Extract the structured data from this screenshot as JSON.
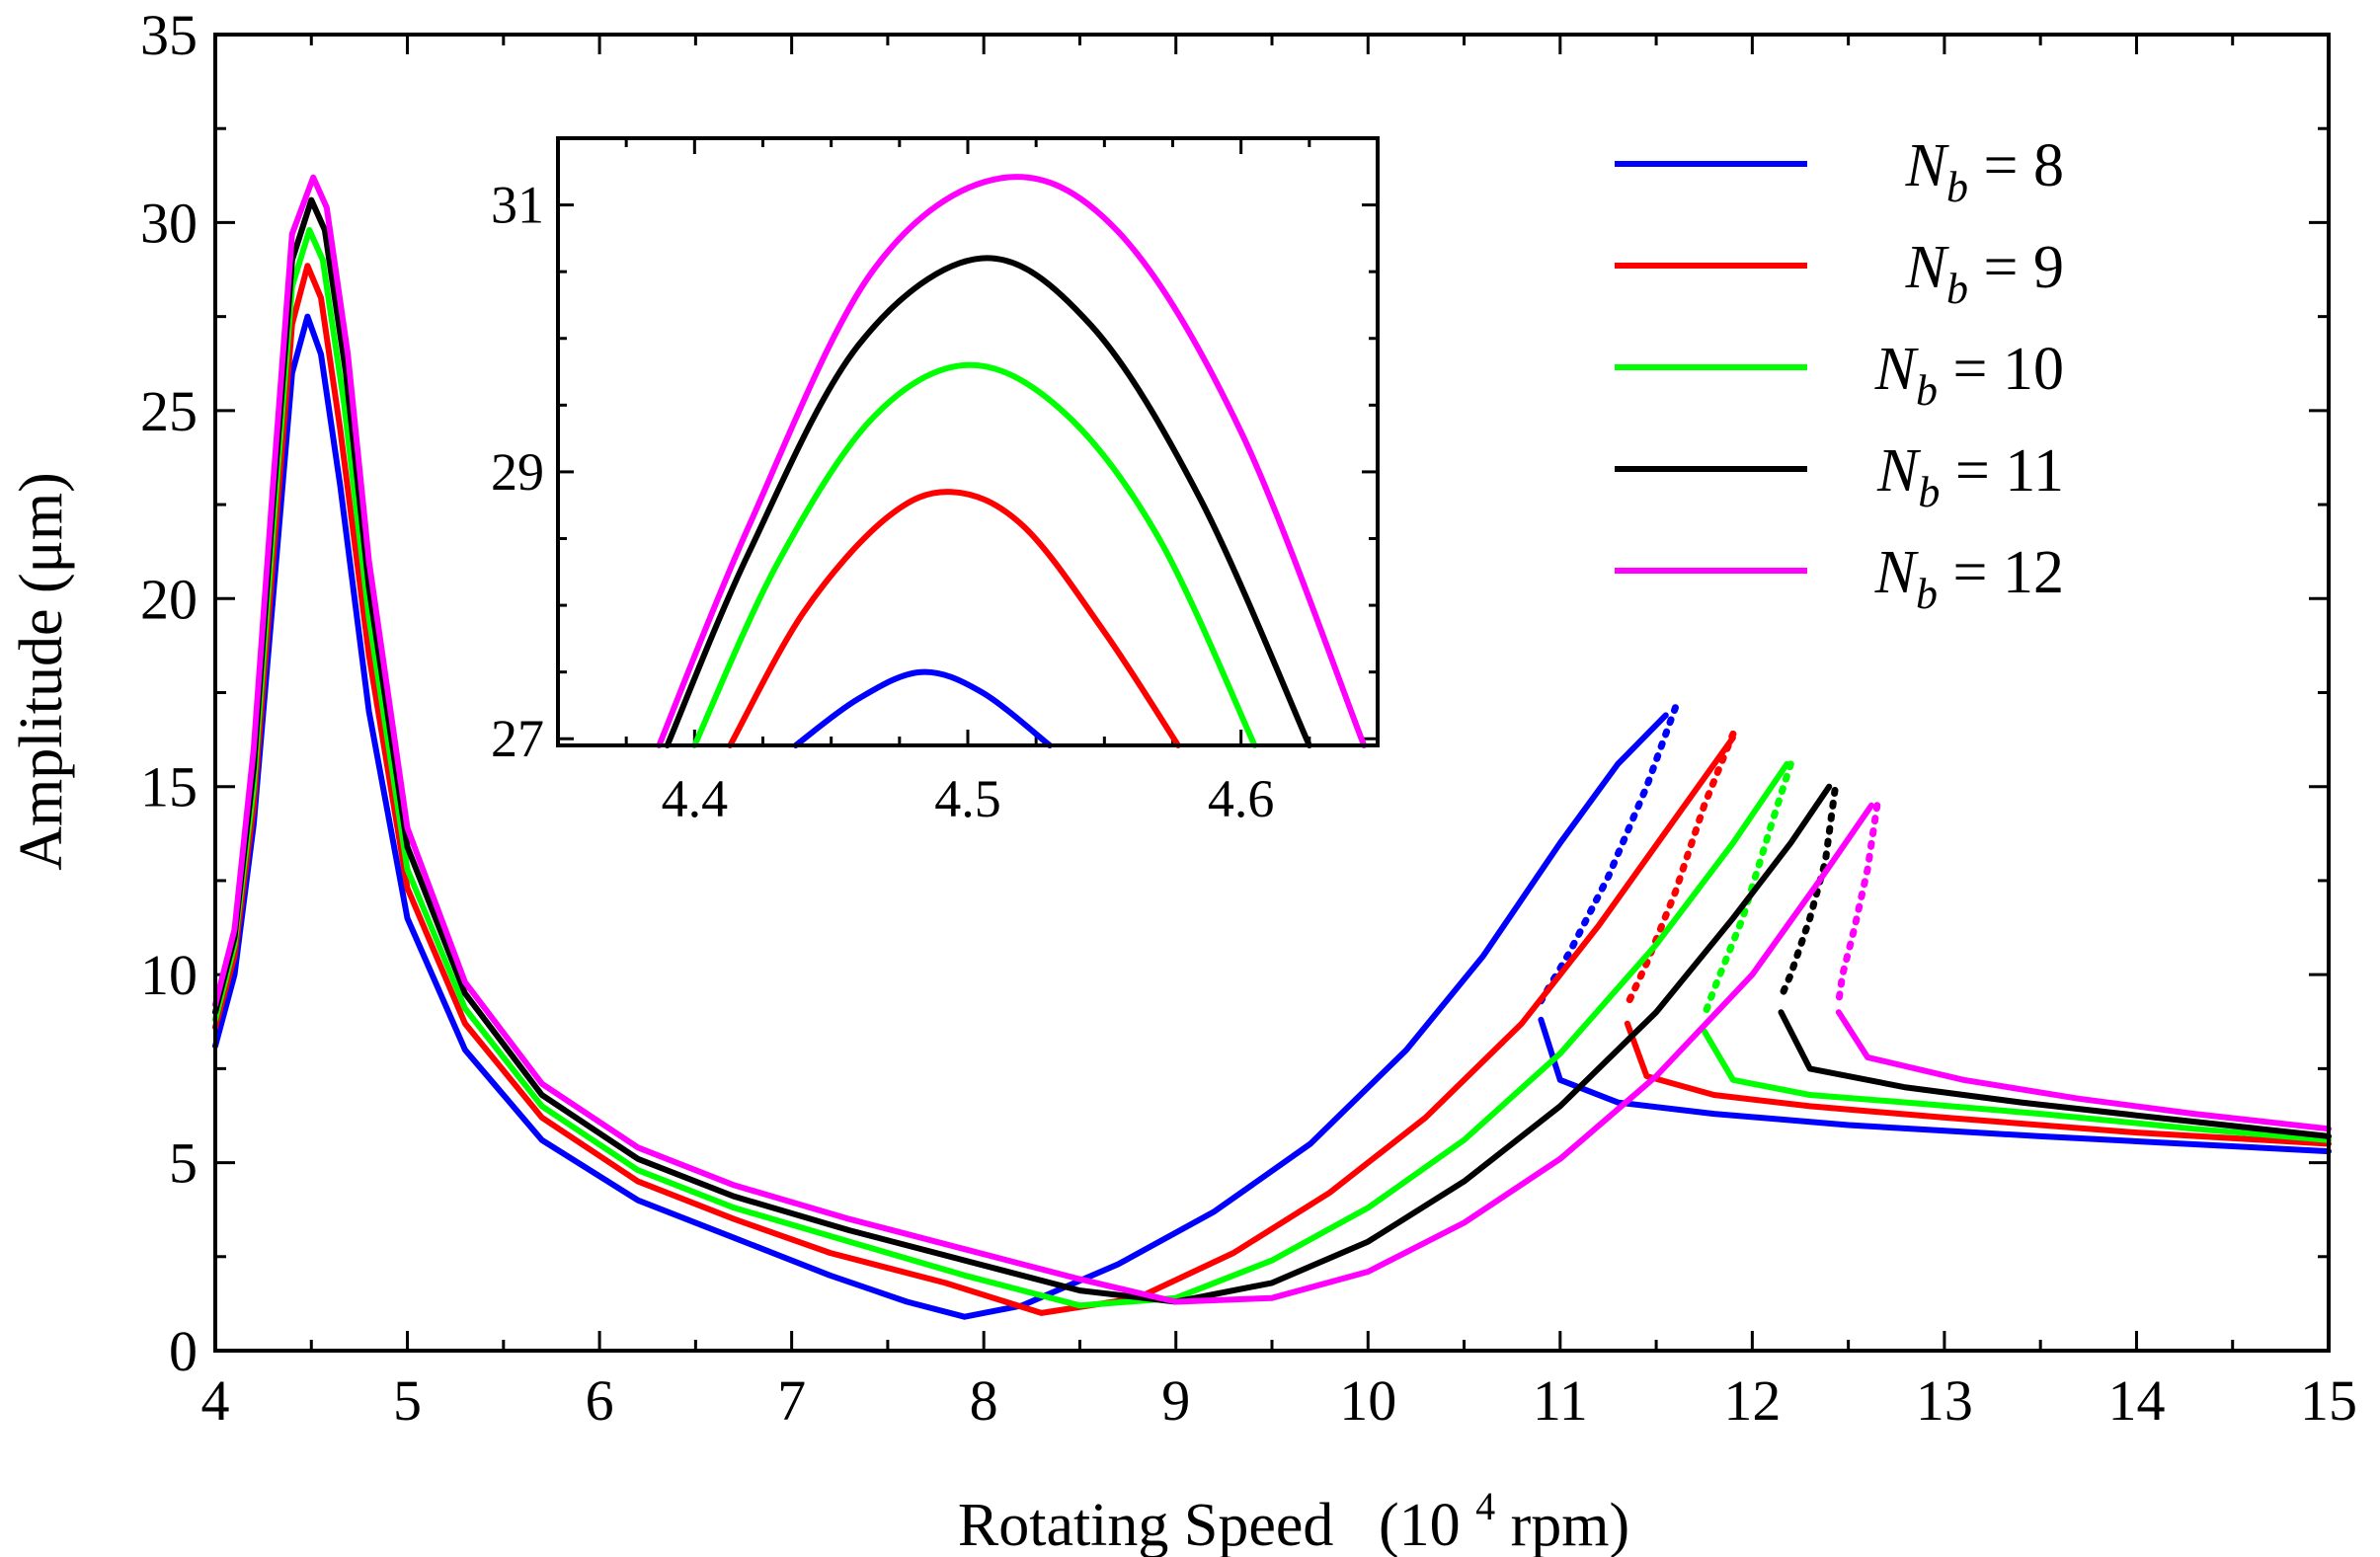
{
  "chart_data": {
    "type": "line",
    "title": "",
    "xlabel": {
      "text": "Rotating Speed",
      "unit_prefix": "(10",
      "unit_exp": "4",
      "unit_suffix": " rpm)"
    },
    "ylabel": {
      "text": "Amplitude (μm)"
    },
    "xlim": [
      4,
      15
    ],
    "ylim": [
      0,
      35
    ],
    "xticks": [
      "4",
      "5",
      "6",
      "7",
      "8",
      "9",
      "10",
      "11",
      "12",
      "13",
      "14",
      "15"
    ],
    "yticks": [
      "0",
      "5",
      "10",
      "15",
      "20",
      "25",
      "30",
      "35"
    ],
    "legend_position": "top-right",
    "legend": [
      {
        "symbol": "N",
        "subscript": "b",
        "rest": " = 8"
      },
      {
        "symbol": "N",
        "subscript": "b",
        "rest": " = 9"
      },
      {
        "symbol": "N",
        "subscript": "b",
        "rest": " = 10"
      },
      {
        "symbol": "N",
        "subscript": "b",
        "rest": " = 11"
      },
      {
        "symbol": "N",
        "subscript": "b",
        "rest": " = 12"
      }
    ],
    "series": [
      {
        "name": "Nb = 8",
        "color": "#0000ff",
        "solid_points": [
          [
            4,
            8.1
          ],
          [
            4.1,
            10
          ],
          [
            4.2,
            14
          ],
          [
            4.3,
            20
          ],
          [
            4.4,
            26
          ],
          [
            4.48,
            27.5
          ],
          [
            4.55,
            26.5
          ],
          [
            4.65,
            23
          ],
          [
            4.8,
            17
          ],
          [
            5,
            11.5
          ],
          [
            5.3,
            8
          ],
          [
            5.7,
            5.6
          ],
          [
            6.2,
            4
          ],
          [
            6.7,
            3
          ],
          [
            7.2,
            2
          ],
          [
            7.6,
            1.3
          ],
          [
            7.9,
            0.9
          ],
          [
            8.2,
            1.2
          ],
          [
            8.7,
            2.3
          ],
          [
            9.2,
            3.7
          ],
          [
            9.7,
            5.5
          ],
          [
            10.2,
            8
          ],
          [
            10.6,
            10.5
          ],
          [
            11,
            13.5
          ],
          [
            11.3,
            15.6
          ],
          [
            11.55,
            16.9
          ]
        ],
        "dotted_points": [
          [
            11.6,
            17.1
          ],
          [
            11.45,
            15
          ],
          [
            11.25,
            12.6
          ],
          [
            11.05,
            10.6
          ],
          [
            10.9,
            9.3
          ]
        ],
        "lower_points": [
          [
            10.9,
            8.8
          ],
          [
            11,
            7.2
          ],
          [
            11.3,
            6.6
          ],
          [
            11.8,
            6.3
          ],
          [
            12.5,
            6
          ],
          [
            13.5,
            5.7
          ],
          [
            15,
            5.3
          ]
        ]
      },
      {
        "name": "Nb = 9",
        "color": "#ff0000",
        "solid_points": [
          [
            4,
            8.6
          ],
          [
            4.1,
            10.5
          ],
          [
            4.2,
            14.5
          ],
          [
            4.3,
            21
          ],
          [
            4.4,
            27.3
          ],
          [
            4.48,
            28.85
          ],
          [
            4.55,
            28
          ],
          [
            4.65,
            24.5
          ],
          [
            4.8,
            18.5
          ],
          [
            5,
            12.3
          ],
          [
            5.3,
            8.7
          ],
          [
            5.7,
            6.2
          ],
          [
            6.2,
            4.5
          ],
          [
            6.7,
            3.5
          ],
          [
            7.2,
            2.6
          ],
          [
            7.8,
            1.8
          ],
          [
            8.3,
            1
          ],
          [
            8.8,
            1.4
          ],
          [
            9.3,
            2.6
          ],
          [
            9.8,
            4.2
          ],
          [
            10.3,
            6.2
          ],
          [
            10.8,
            8.7
          ],
          [
            11.2,
            11.3
          ],
          [
            11.55,
            13.8
          ],
          [
            11.9,
            16.3
          ]
        ],
        "dotted_points": [
          [
            11.9,
            16.4
          ],
          [
            11.75,
            14.5
          ],
          [
            11.6,
            12.2
          ],
          [
            11.45,
            10.3
          ],
          [
            11.35,
            9.2
          ]
        ],
        "lower_points": [
          [
            11.35,
            8.7
          ],
          [
            11.45,
            7.3
          ],
          [
            11.8,
            6.8
          ],
          [
            12.3,
            6.5
          ],
          [
            13,
            6.2
          ],
          [
            14,
            5.8
          ],
          [
            15,
            5.5
          ]
        ]
      },
      {
        "name": "Nb = 10",
        "color": "#00ff00",
        "solid_points": [
          [
            4,
            8.8
          ],
          [
            4.1,
            10.8
          ],
          [
            4.2,
            15
          ],
          [
            4.3,
            21.8
          ],
          [
            4.4,
            28.3
          ],
          [
            4.49,
            29.8
          ],
          [
            4.56,
            29
          ],
          [
            4.67,
            25.2
          ],
          [
            4.8,
            19.5
          ],
          [
            5,
            12.8
          ],
          [
            5.3,
            9.1
          ],
          [
            5.7,
            6.5
          ],
          [
            6.2,
            4.8
          ],
          [
            6.7,
            3.8
          ],
          [
            7.3,
            2.9
          ],
          [
            7.9,
            2
          ],
          [
            8.5,
            1.2
          ],
          [
            9,
            1.4
          ],
          [
            9.5,
            2.4
          ],
          [
            10,
            3.8
          ],
          [
            10.5,
            5.6
          ],
          [
            11,
            7.9
          ],
          [
            11.5,
            10.8
          ],
          [
            11.9,
            13.5
          ],
          [
            12.18,
            15.6
          ]
        ],
        "dotted_points": [
          [
            12.2,
            15.6
          ],
          [
            12.1,
            14
          ],
          [
            11.95,
            11.5
          ],
          [
            11.8,
            9.6
          ],
          [
            11.75,
            8.9
          ]
        ],
        "lower_points": [
          [
            11.75,
            8.5
          ],
          [
            11.9,
            7.2
          ],
          [
            12.3,
            6.8
          ],
          [
            12.8,
            6.6
          ],
          [
            13.5,
            6.3
          ],
          [
            14.3,
            5.9
          ],
          [
            15,
            5.6
          ]
        ]
      },
      {
        "name": "Nb = 11",
        "color": "#000000",
        "solid_points": [
          [
            4,
            9
          ],
          [
            4.1,
            11
          ],
          [
            4.2,
            15.5
          ],
          [
            4.3,
            22.5
          ],
          [
            4.4,
            29
          ],
          [
            4.5,
            30.6
          ],
          [
            4.57,
            29.8
          ],
          [
            4.68,
            26
          ],
          [
            4.8,
            20.3
          ],
          [
            5,
            13.4
          ],
          [
            5.3,
            9.5
          ],
          [
            5.7,
            6.8
          ],
          [
            6.2,
            5.1
          ],
          [
            6.7,
            4.1
          ],
          [
            7.3,
            3.2
          ],
          [
            7.9,
            2.4
          ],
          [
            8.5,
            1.6
          ],
          [
            9,
            1.3
          ],
          [
            9.5,
            1.8
          ],
          [
            10,
            2.9
          ],
          [
            10.5,
            4.5
          ],
          [
            11,
            6.5
          ],
          [
            11.5,
            9
          ],
          [
            11.9,
            11.5
          ],
          [
            12.2,
            13.5
          ],
          [
            12.4,
            15
          ]
        ],
        "dotted_points": [
          [
            12.43,
            14.9
          ],
          [
            12.38,
            13
          ],
          [
            12.3,
            11.5
          ],
          [
            12.2,
            10
          ],
          [
            12.15,
            9.4
          ]
        ],
        "lower_points": [
          [
            12.15,
            9
          ],
          [
            12.3,
            7.5
          ],
          [
            12.8,
            7
          ],
          [
            13.4,
            6.6
          ],
          [
            14.1,
            6.2
          ],
          [
            15,
            5.7
          ]
        ]
      },
      {
        "name": "Nb = 12",
        "color": "#ff00ff",
        "solid_points": [
          [
            4,
            9.2
          ],
          [
            4.1,
            11.2
          ],
          [
            4.2,
            16
          ],
          [
            4.3,
            23
          ],
          [
            4.4,
            29.7
          ],
          [
            4.51,
            31.2
          ],
          [
            4.58,
            30.4
          ],
          [
            4.69,
            26.5
          ],
          [
            4.8,
            21
          ],
          [
            5,
            13.9
          ],
          [
            5.3,
            9.8
          ],
          [
            5.7,
            7.1
          ],
          [
            6.2,
            5.4
          ],
          [
            6.7,
            4.4
          ],
          [
            7.3,
            3.5
          ],
          [
            7.9,
            2.7
          ],
          [
            8.5,
            1.9
          ],
          [
            9,
            1.3
          ],
          [
            9.5,
            1.4
          ],
          [
            10,
            2.1
          ],
          [
            10.5,
            3.4
          ],
          [
            11,
            5.1
          ],
          [
            11.5,
            7.3
          ],
          [
            12,
            10
          ],
          [
            12.35,
            12.5
          ],
          [
            12.62,
            14.5
          ]
        ],
        "dotted_points": [
          [
            12.65,
            14.5
          ],
          [
            12.6,
            12.8
          ],
          [
            12.53,
            11.2
          ],
          [
            12.47,
            10
          ],
          [
            12.45,
            9.3
          ]
        ],
        "lower_points": [
          [
            12.45,
            9
          ],
          [
            12.6,
            7.8
          ],
          [
            13.1,
            7.2
          ],
          [
            13.7,
            6.7
          ],
          [
            14.3,
            6.3
          ],
          [
            15,
            5.9
          ]
        ]
      }
    ],
    "inset": {
      "xlim": [
        4.35,
        4.65
      ],
      "ylim": [
        26.95,
        31.5
      ],
      "xticks": [
        "4.4",
        "4.5",
        "4.6"
      ],
      "yticks": [
        "27",
        "29",
        "31"
      ],
      "series": [
        {
          "name": "Nb = 8",
          "points": [
            [
              4.437,
              26.95
            ],
            [
              4.46,
              27.3
            ],
            [
              4.483,
              27.5
            ],
            [
              4.505,
              27.35
            ],
            [
              4.53,
              26.95
            ]
          ]
        },
        {
          "name": "Nb = 9",
          "points": [
            [
              4.413,
              26.95
            ],
            [
              4.44,
              27.95
            ],
            [
              4.47,
              28.65
            ],
            [
              4.494,
              28.85
            ],
            [
              4.52,
              28.6
            ],
            [
              4.55,
              27.8
            ],
            [
              4.577,
              26.95
            ]
          ]
        },
        {
          "name": "Nb = 10",
          "points": [
            [
              4.4,
              26.95
            ],
            [
              4.43,
              28.3
            ],
            [
              4.465,
              29.4
            ],
            [
              4.5,
              29.8
            ],
            [
              4.535,
              29.45
            ],
            [
              4.57,
              28.5
            ],
            [
              4.605,
              26.95
            ]
          ]
        },
        {
          "name": "Nb = 11",
          "points": [
            [
              4.39,
              26.95
            ],
            [
              4.42,
              28.4
            ],
            [
              4.46,
              29.95
            ],
            [
              4.505,
              30.6
            ],
            [
              4.545,
              30.1
            ],
            [
              4.585,
              28.8
            ],
            [
              4.625,
              26.95
            ]
          ]
        },
        {
          "name": "Nb = 12",
          "points": [
            [
              4.387,
              26.95
            ],
            [
              4.42,
              28.6
            ],
            [
              4.465,
              30.5
            ],
            [
              4.512,
              31.2
            ],
            [
              4.555,
              30.8
            ],
            [
              4.6,
              29.3
            ],
            [
              4.645,
              26.95
            ]
          ]
        }
      ]
    }
  }
}
